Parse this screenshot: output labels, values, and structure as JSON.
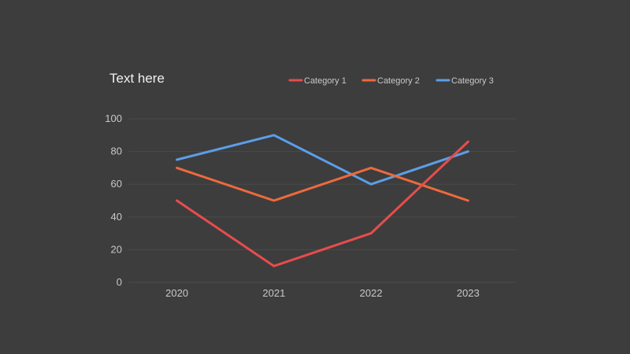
{
  "chart_data": {
    "type": "line",
    "title": "Text here",
    "categories": [
      "2020",
      "2021",
      "2022",
      "2023"
    ],
    "series": [
      {
        "name": "Category 1",
        "values": [
          50,
          10,
          30,
          86
        ],
        "color": "#e84c4c"
      },
      {
        "name": "Category 2",
        "values": [
          70,
          50,
          70,
          50
        ],
        "color": "#ee6a3c"
      },
      {
        "name": "Category 3",
        "values": [
          75,
          90,
          60,
          80
        ],
        "color": "#5b9ee8"
      }
    ],
    "ylim": [
      0,
      100
    ],
    "yticks": [
      0,
      20,
      40,
      60,
      80,
      100
    ],
    "grid": true,
    "legend_position": "top-right"
  }
}
